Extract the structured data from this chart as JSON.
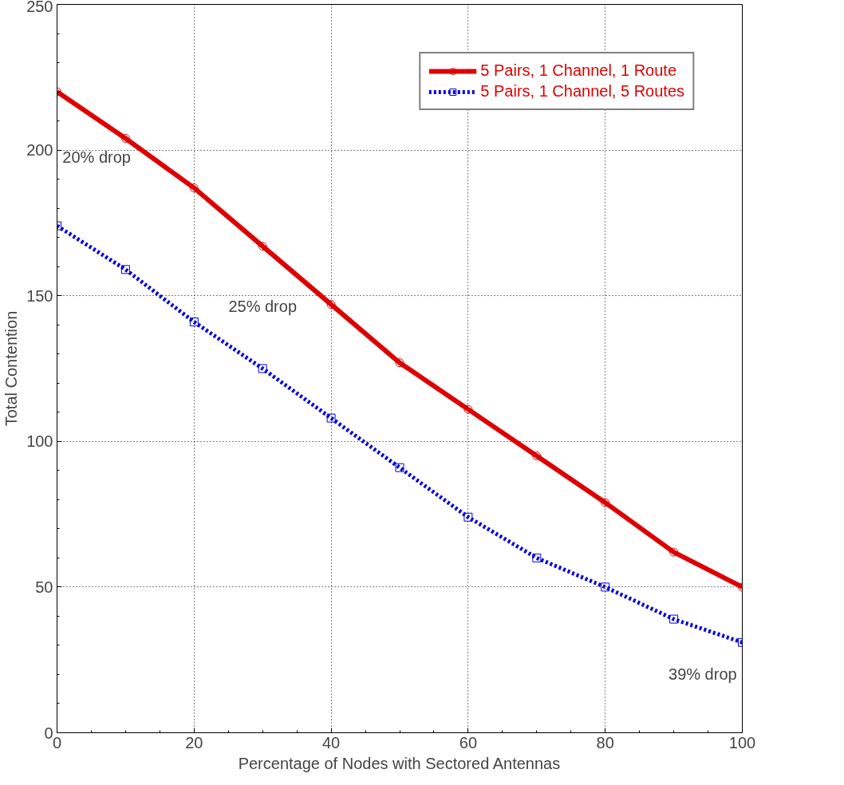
{
  "chart_data": {
    "type": "line",
    "xlabel": "Percentage of Nodes with Sectored Antennas",
    "ylabel": "Total Contention",
    "x": [
      0,
      10,
      20,
      30,
      40,
      50,
      60,
      70,
      80,
      90,
      100
    ],
    "series": [
      {
        "name": "5 Pairs, 1 Channel, 1 Route",
        "color": "#dd0000",
        "line_style": "solid",
        "marker": "circle",
        "values": [
          220,
          204,
          187,
          167,
          147,
          127,
          111,
          95,
          79,
          62,
          50
        ]
      },
      {
        "name": "5 Pairs, 1 Channel, 5 Routes",
        "color": "#0000dd",
        "line_style": "dotted",
        "marker": "square",
        "values": [
          174,
          159,
          141,
          125,
          108,
          91,
          74,
          60,
          50,
          39,
          31
        ]
      }
    ],
    "xlim": [
      0,
      100
    ],
    "xticks": [
      0,
      20,
      40,
      60,
      80,
      100
    ],
    "ylim": [
      0,
      250
    ],
    "yticks": [
      0,
      50,
      100,
      150,
      200,
      250
    ],
    "grid": true,
    "legend": "top right",
    "annotations": [
      "20% drop",
      "25% drop",
      "39% drop"
    ]
  }
}
